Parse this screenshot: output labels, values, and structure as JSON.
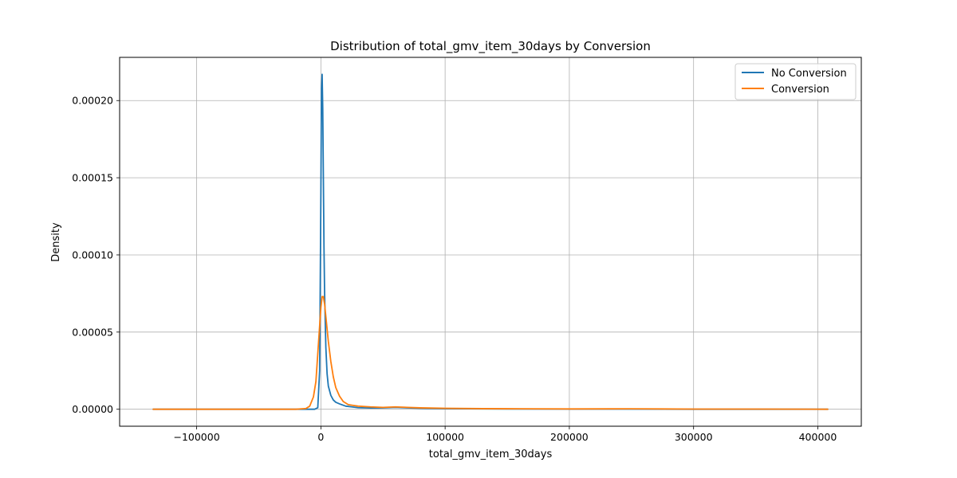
{
  "chart_data": {
    "type": "line",
    "title": "Distribution of total_gmv_item_30days by Conversion",
    "xlabel": "total_gmv_item_30days",
    "ylabel": "Density",
    "xlim": [
      -162000,
      435000
    ],
    "ylim": [
      -1.1e-05,
      0.000228
    ],
    "xticks": [
      -100000,
      0,
      100000,
      200000,
      300000,
      400000
    ],
    "xtick_labels": [
      "−100000",
      "0",
      "100000",
      "200000",
      "300000",
      "400000"
    ],
    "yticks": [
      0,
      5e-05,
      0.0001,
      0.00015,
      0.0002
    ],
    "ytick_labels": [
      "0.00000",
      "0.00005",
      "0.00010",
      "0.00015",
      "0.00020"
    ],
    "grid": true,
    "legend": "top-right",
    "series": [
      {
        "name": "No Conversion",
        "color": "#1f77b4",
        "x": [
          -135000,
          -5000,
          -2500,
          -1000,
          0,
          500,
          1000,
          1500,
          2000,
          2500,
          3000,
          4000,
          5000,
          6000,
          8000,
          10000,
          12000,
          15000,
          20000,
          25000,
          30000,
          40000,
          50000,
          60000,
          70000,
          80000,
          100000,
          120000,
          150000,
          200000,
          250000,
          300000,
          350000,
          408000
        ],
        "y": [
          0,
          0,
          1e-06,
          2.5e-05,
          0.00014,
          0.000208,
          0.000217,
          0.000195,
          0.00015,
          0.000105,
          7.5e-05,
          4e-05,
          2.3e-05,
          1.5e-05,
          9e-06,
          6e-06,
          4.5e-06,
          3.5e-06,
          2e-06,
          1.5e-06,
          1e-06,
          8e-07,
          9e-07,
          1.2e-06,
          9e-07,
          6e-07,
          4e-07,
          3e-07,
          2e-07,
          1e-07,
          1e-07,
          0,
          0,
          0
        ]
      },
      {
        "name": "Conversion",
        "color": "#ff7f0e",
        "x": [
          -135000,
          -40000,
          -20000,
          -12000,
          -9000,
          -6000,
          -4000,
          -2000,
          0,
          1000,
          2000,
          3000,
          4000,
          6000,
          8000,
          10000,
          12000,
          15000,
          18000,
          22000,
          26000,
          30000,
          40000,
          50000,
          60000,
          70000,
          80000,
          100000,
          130000,
          160000,
          200000,
          250000,
          275000,
          300000,
          350000,
          408000
        ],
        "y": [
          0,
          0,
          0,
          5e-07,
          2e-06,
          8e-06,
          1.8e-05,
          4.2e-05,
          6.6e-05,
          7.3e-05,
          7.3e-05,
          6.8e-05,
          6e-05,
          4.4e-05,
          3.1e-05,
          2.1e-05,
          1.4e-05,
          8.5e-06,
          5e-06,
          3e-06,
          2.5e-06,
          2e-06,
          1.5e-06,
          1.2e-06,
          1.5e-06,
          1.2e-06,
          9e-07,
          6e-07,
          4e-07,
          3e-07,
          2e-07,
          3e-07,
          2e-07,
          1e-07,
          1e-07,
          0
        ]
      }
    ]
  }
}
